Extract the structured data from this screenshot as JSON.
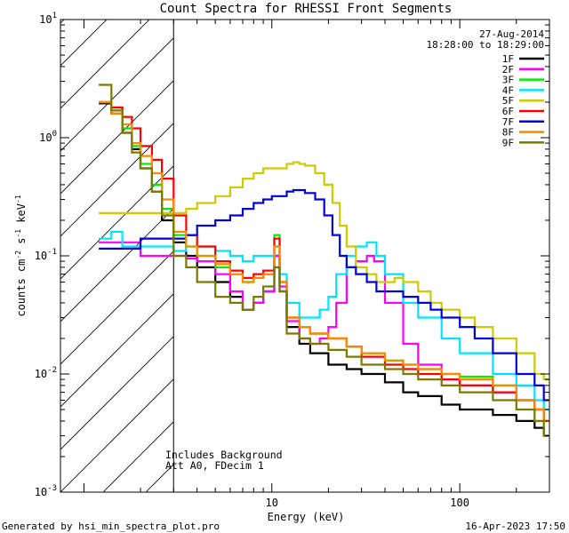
{
  "chart_data": {
    "type": "line",
    "title": "Count Spectra for RHESSI Front Segments",
    "xlabel": "Energy (keV)",
    "ylabel_parts": [
      "counts cm",
      "-2",
      " s",
      "-1",
      " keV",
      "-1"
    ],
    "xscale": "log",
    "yscale": "log",
    "xlim": [
      0.75,
      300
    ],
    "ylim": [
      0.001,
      10
    ],
    "x_ticks": [
      {
        "value": 10,
        "label": "10"
      },
      {
        "value": 100,
        "label": "100"
      }
    ],
    "y_ticks": [
      {
        "value": 0.001,
        "base": "10",
        "exp": "-3"
      },
      {
        "value": 0.01,
        "base": "10",
        "exp": "-2"
      },
      {
        "value": 0.1,
        "base": "10",
        "exp": "-1"
      },
      {
        "value": 1,
        "base": "10",
        "exp": "0"
      },
      {
        "value": 10,
        "base": "10",
        "exp": "1"
      }
    ],
    "date": "27-Aug-2014",
    "time_range": "18:28:00 to 18:29:00",
    "hatched_region_max_keV": 3,
    "annotations": [
      "Includes Background",
      "Att A0, FDecim 1"
    ],
    "series": [
      {
        "name": "1F",
        "color": "#000000",
        "points": [
          [
            1.2,
            1.95
          ],
          [
            1.4,
            1.6
          ],
          [
            1.6,
            1.1
          ],
          [
            1.8,
            0.8
          ],
          [
            2.0,
            0.55
          ],
          [
            2.3,
            0.35
          ],
          [
            2.6,
            0.2
          ],
          [
            3.0,
            0.13
          ],
          [
            3.5,
            0.1
          ],
          [
            4,
            0.08
          ],
          [
            5,
            0.06
          ],
          [
            6,
            0.045
          ],
          [
            7,
            0.035
          ],
          [
            8,
            0.04
          ],
          [
            9,
            0.05
          ],
          [
            10.3,
            0.1
          ],
          [
            11,
            0.05
          ],
          [
            12,
            0.025
          ],
          [
            14,
            0.018
          ],
          [
            16,
            0.015
          ],
          [
            20,
            0.012
          ],
          [
            25,
            0.011
          ],
          [
            30,
            0.01
          ],
          [
            40,
            0.0085
          ],
          [
            50,
            0.007
          ],
          [
            60,
            0.0065
          ],
          [
            80,
            0.0055
          ],
          [
            100,
            0.005
          ],
          [
            150,
            0.0045
          ],
          [
            200,
            0.004
          ],
          [
            250,
            0.0035
          ],
          [
            280,
            0.003
          ]
        ]
      },
      {
        "name": "2F",
        "color": "#ff00ff",
        "points": [
          [
            1.2,
            0.13
          ],
          [
            1.6,
            0.13
          ],
          [
            2.0,
            0.1
          ],
          [
            2.5,
            0.1
          ],
          [
            3.0,
            0.1
          ],
          [
            3.5,
            0.095
          ],
          [
            4,
            0.09
          ],
          [
            5,
            0.07
          ],
          [
            6,
            0.05
          ],
          [
            7,
            0.035
          ],
          [
            8,
            0.04
          ],
          [
            9,
            0.05
          ],
          [
            10.3,
            0.1
          ],
          [
            11,
            0.055
          ],
          [
            12,
            0.028
          ],
          [
            14,
            0.02
          ],
          [
            16,
            0.018
          ],
          [
            18,
            0.02
          ],
          [
            20,
            0.025
          ],
          [
            22,
            0.04
          ],
          [
            25,
            0.08
          ],
          [
            28,
            0.09
          ],
          [
            32,
            0.1
          ],
          [
            35,
            0.09
          ],
          [
            40,
            0.04
          ],
          [
            50,
            0.018
          ],
          [
            60,
            0.012
          ],
          [
            80,
            0.009
          ],
          [
            100,
            0.008
          ],
          [
            150,
            0.007
          ],
          [
            200,
            0.006
          ],
          [
            250,
            0.005
          ],
          [
            280,
            0.004
          ]
        ]
      },
      {
        "name": "3F",
        "color": "#00ee00",
        "points": [
          [
            1.2,
            2.0
          ],
          [
            1.4,
            1.8
          ],
          [
            1.6,
            1.2
          ],
          [
            1.8,
            0.85
          ],
          [
            2.0,
            0.6
          ],
          [
            2.3,
            0.4
          ],
          [
            2.6,
            0.25
          ],
          [
            3.0,
            0.15
          ],
          [
            3.5,
            0.12
          ],
          [
            4,
            0.1
          ],
          [
            5,
            0.08
          ],
          [
            6,
            0.07
          ],
          [
            7,
            0.06
          ],
          [
            8,
            0.065
          ],
          [
            9,
            0.07
          ],
          [
            10.3,
            0.15
          ],
          [
            11,
            0.06
          ],
          [
            12,
            0.03
          ],
          [
            14,
            0.025
          ],
          [
            16,
            0.022
          ],
          [
            20,
            0.02
          ],
          [
            25,
            0.017
          ],
          [
            30,
            0.015
          ],
          [
            40,
            0.013
          ],
          [
            50,
            0.012
          ],
          [
            60,
            0.011
          ],
          [
            80,
            0.01
          ],
          [
            100,
            0.0095
          ],
          [
            150,
            0.008
          ],
          [
            200,
            0.006
          ],
          [
            250,
            0.005
          ],
          [
            280,
            0.004
          ]
        ]
      },
      {
        "name": "4F",
        "color": "#00e5ff",
        "points": [
          [
            1.2,
            0.14
          ],
          [
            1.4,
            0.16
          ],
          [
            1.6,
            0.12
          ],
          [
            2.0,
            0.12
          ],
          [
            2.5,
            0.12
          ],
          [
            3.0,
            0.11
          ],
          [
            3.5,
            0.12
          ],
          [
            4,
            0.12
          ],
          [
            5,
            0.11
          ],
          [
            6,
            0.1
          ],
          [
            7,
            0.09
          ],
          [
            8,
            0.1
          ],
          [
            9,
            0.1
          ],
          [
            10.3,
            0.12
          ],
          [
            11,
            0.07
          ],
          [
            12,
            0.04
          ],
          [
            14,
            0.03
          ],
          [
            16,
            0.03
          ],
          [
            18,
            0.035
          ],
          [
            20,
            0.045
          ],
          [
            22,
            0.07
          ],
          [
            25,
            0.1
          ],
          [
            28,
            0.12
          ],
          [
            32,
            0.13
          ],
          [
            36,
            0.1
          ],
          [
            40,
            0.07
          ],
          [
            50,
            0.04
          ],
          [
            60,
            0.03
          ],
          [
            80,
            0.02
          ],
          [
            100,
            0.015
          ],
          [
            150,
            0.01
          ],
          [
            200,
            0.008
          ],
          [
            250,
            0.006
          ],
          [
            280,
            0.005
          ]
        ]
      },
      {
        "name": "5F",
        "color": "#cccc00",
        "points": [
          [
            1.2,
            0.23
          ],
          [
            1.6,
            0.23
          ],
          [
            2.0,
            0.23
          ],
          [
            2.5,
            0.23
          ],
          [
            3.0,
            0.23
          ],
          [
            3.5,
            0.25
          ],
          [
            4,
            0.28
          ],
          [
            5,
            0.32
          ],
          [
            6,
            0.38
          ],
          [
            7,
            0.45
          ],
          [
            8,
            0.5
          ],
          [
            9,
            0.55
          ],
          [
            10,
            0.55
          ],
          [
            12,
            0.6
          ],
          [
            13,
            0.62
          ],
          [
            14,
            0.6
          ],
          [
            15,
            0.58
          ],
          [
            17,
            0.5
          ],
          [
            19,
            0.4
          ],
          [
            21,
            0.28
          ],
          [
            23,
            0.18
          ],
          [
            25,
            0.12
          ],
          [
            28,
            0.08
          ],
          [
            32,
            0.07
          ],
          [
            36,
            0.06
          ],
          [
            40,
            0.06
          ],
          [
            45,
            0.065
          ],
          [
            50,
            0.06
          ],
          [
            60,
            0.05
          ],
          [
            70,
            0.04
          ],
          [
            80,
            0.035
          ],
          [
            100,
            0.03
          ],
          [
            120,
            0.025
          ],
          [
            150,
            0.02
          ],
          [
            200,
            0.015
          ],
          [
            250,
            0.01
          ],
          [
            280,
            0.009
          ]
        ]
      },
      {
        "name": "6F",
        "color": "#ff0000",
        "points": [
          [
            1.2,
            2.0
          ],
          [
            1.4,
            1.8
          ],
          [
            1.6,
            1.5
          ],
          [
            1.8,
            1.2
          ],
          [
            2.0,
            0.85
          ],
          [
            2.3,
            0.65
          ],
          [
            2.6,
            0.45
          ],
          [
            3.0,
            0.22
          ],
          [
            3.5,
            0.15
          ],
          [
            4,
            0.12
          ],
          [
            5,
            0.09
          ],
          [
            6,
            0.075
          ],
          [
            7,
            0.065
          ],
          [
            8,
            0.07
          ],
          [
            9,
            0.075
          ],
          [
            10.3,
            0.14
          ],
          [
            11,
            0.06
          ],
          [
            12,
            0.03
          ],
          [
            14,
            0.025
          ],
          [
            16,
            0.022
          ],
          [
            20,
            0.02
          ],
          [
            25,
            0.017
          ],
          [
            30,
            0.014
          ],
          [
            40,
            0.012
          ],
          [
            50,
            0.011
          ],
          [
            60,
            0.01
          ],
          [
            80,
            0.009
          ],
          [
            100,
            0.008
          ],
          [
            150,
            0.007
          ],
          [
            200,
            0.006
          ],
          [
            250,
            0.005
          ],
          [
            280,
            0.004
          ]
        ]
      },
      {
        "name": "7F",
        "color": "#0000dd",
        "points": [
          [
            1.2,
            0.115
          ],
          [
            1.6,
            0.115
          ],
          [
            2.0,
            0.14
          ],
          [
            2.5,
            0.14
          ],
          [
            3.0,
            0.14
          ],
          [
            3.5,
            0.15
          ],
          [
            4,
            0.18
          ],
          [
            5,
            0.2
          ],
          [
            6,
            0.22
          ],
          [
            7,
            0.25
          ],
          [
            8,
            0.28
          ],
          [
            9,
            0.3
          ],
          [
            10,
            0.32
          ],
          [
            12,
            0.35
          ],
          [
            13,
            0.36
          ],
          [
            14,
            0.36
          ],
          [
            15,
            0.34
          ],
          [
            17,
            0.3
          ],
          [
            19,
            0.22
          ],
          [
            21,
            0.15
          ],
          [
            23,
            0.1
          ],
          [
            25,
            0.08
          ],
          [
            28,
            0.07
          ],
          [
            32,
            0.06
          ],
          [
            36,
            0.05
          ],
          [
            40,
            0.05
          ],
          [
            50,
            0.045
          ],
          [
            60,
            0.04
          ],
          [
            70,
            0.035
          ],
          [
            80,
            0.03
          ],
          [
            100,
            0.025
          ],
          [
            120,
            0.02
          ],
          [
            150,
            0.015
          ],
          [
            200,
            0.01
          ],
          [
            250,
            0.008
          ],
          [
            280,
            0.006
          ]
        ]
      },
      {
        "name": "8F",
        "color": "#ff8800",
        "points": [
          [
            1.2,
            2.0
          ],
          [
            1.4,
            1.6
          ],
          [
            1.6,
            1.3
          ],
          [
            1.8,
            0.9
          ],
          [
            2.0,
            0.7
          ],
          [
            2.3,
            0.5
          ],
          [
            2.6,
            0.3
          ],
          [
            3.0,
            0.16
          ],
          [
            3.5,
            0.12
          ],
          [
            4,
            0.1
          ],
          [
            5,
            0.085
          ],
          [
            6,
            0.07
          ],
          [
            7,
            0.06
          ],
          [
            8,
            0.065
          ],
          [
            9,
            0.07
          ],
          [
            10.3,
            0.12
          ],
          [
            11,
            0.06
          ],
          [
            12,
            0.03
          ],
          [
            14,
            0.025
          ],
          [
            16,
            0.022
          ],
          [
            20,
            0.02
          ],
          [
            25,
            0.017
          ],
          [
            30,
            0.015
          ],
          [
            40,
            0.013
          ],
          [
            50,
            0.012
          ],
          [
            60,
            0.011
          ],
          [
            80,
            0.01
          ],
          [
            100,
            0.009
          ],
          [
            150,
            0.008
          ],
          [
            200,
            0.006
          ],
          [
            250,
            0.005
          ],
          [
            280,
            0.004
          ]
        ]
      },
      {
        "name": "9F",
        "color": "#7a7a00",
        "points": [
          [
            1.2,
            2.8
          ],
          [
            1.4,
            1.7
          ],
          [
            1.6,
            1.1
          ],
          [
            1.8,
            0.75
          ],
          [
            2.0,
            0.55
          ],
          [
            2.3,
            0.35
          ],
          [
            2.6,
            0.22
          ],
          [
            3.0,
            0.1
          ],
          [
            3.5,
            0.08
          ],
          [
            4,
            0.06
          ],
          [
            5,
            0.045
          ],
          [
            6,
            0.04
          ],
          [
            7,
            0.035
          ],
          [
            8,
            0.045
          ],
          [
            9,
            0.055
          ],
          [
            10.3,
            0.08
          ],
          [
            11,
            0.05
          ],
          [
            12,
            0.022
          ],
          [
            14,
            0.02
          ],
          [
            16,
            0.018
          ],
          [
            20,
            0.016
          ],
          [
            25,
            0.014
          ],
          [
            30,
            0.012
          ],
          [
            40,
            0.011
          ],
          [
            50,
            0.01
          ],
          [
            60,
            0.009
          ],
          [
            80,
            0.008
          ],
          [
            100,
            0.007
          ],
          [
            150,
            0.006
          ],
          [
            200,
            0.005
          ],
          [
            250,
            0.004
          ],
          [
            280,
            0.003
          ]
        ]
      }
    ]
  },
  "footer": {
    "generated_by": "Generated by hsi_min_spectra_plot.pro",
    "timestamp": "16-Apr-2023 17:50"
  }
}
